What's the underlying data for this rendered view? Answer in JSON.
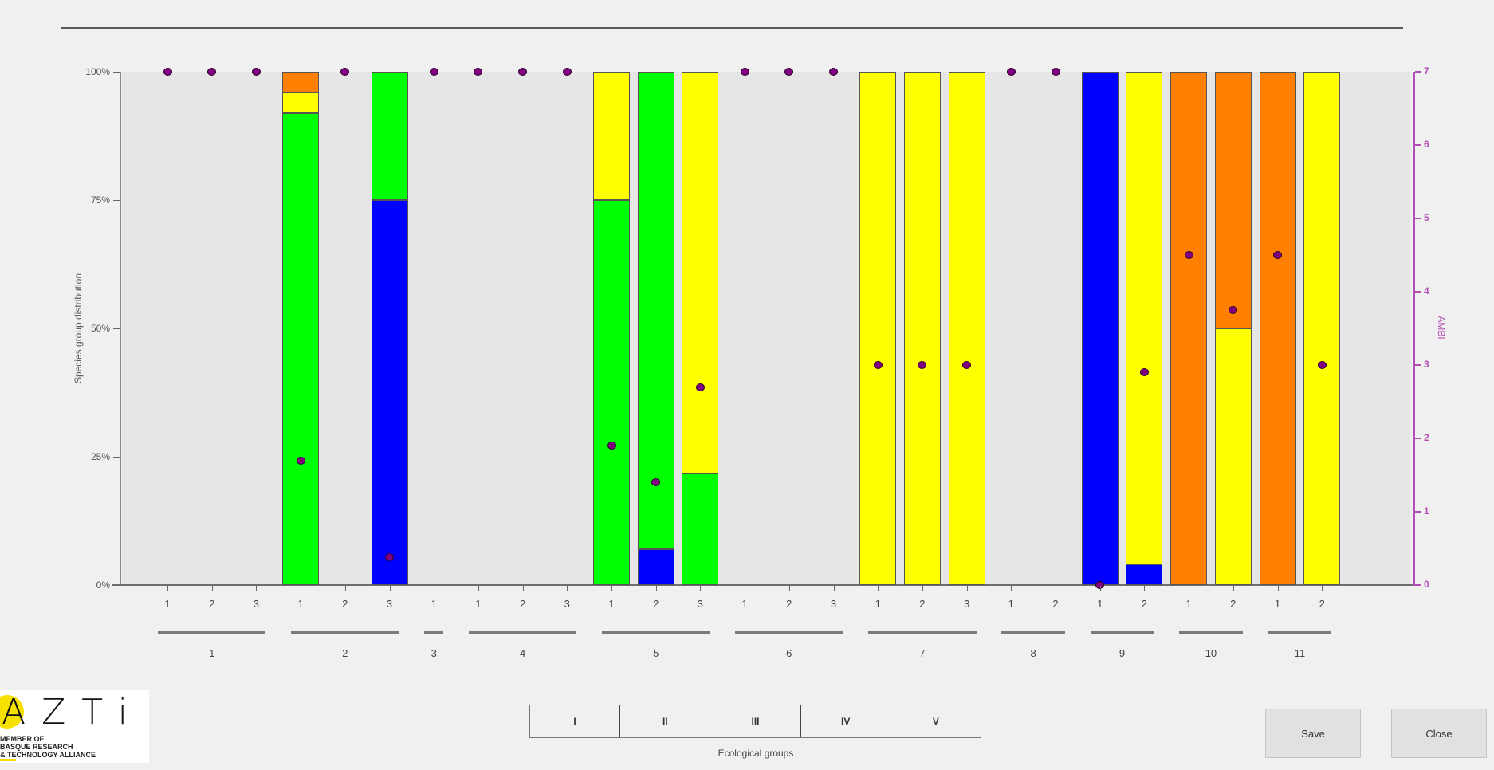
{
  "chart_data": {
    "type": "bar",
    "stacked": true,
    "title": "",
    "ylabel": "Species group distribution",
    "y2label": "AMBI",
    "ylim": [
      0,
      100
    ],
    "y2lim": [
      0,
      7
    ],
    "yticks": [
      "0%",
      "25%",
      "50%",
      "75%",
      "100%"
    ],
    "y2ticks": [
      "0",
      "1",
      "2",
      "3",
      "4",
      "5",
      "6",
      "7"
    ],
    "xlabel_outer": [
      "1",
      "2",
      "3",
      "4",
      "5",
      "6",
      "7",
      "8",
      "9",
      "10",
      "11"
    ],
    "legend_title": "Ecological groups",
    "legend": [
      {
        "label": "I",
        "color": "#0000ff"
      },
      {
        "label": "II",
        "color": "#00ff00"
      },
      {
        "label": "III",
        "color": "#ffff00"
      },
      {
        "label": "IV",
        "color": "#ff8000"
      },
      {
        "label": "V",
        "color": "#ff0000"
      }
    ],
    "groups": [
      {
        "label": "1",
        "samples": [
          "1",
          "2",
          "3"
        ]
      },
      {
        "label": "2",
        "samples": [
          "1",
          "2",
          "3"
        ]
      },
      {
        "label": "3",
        "samples": [
          "1"
        ]
      },
      {
        "label": "4",
        "samples": [
          "1",
          "2",
          "3"
        ]
      },
      {
        "label": "5",
        "samples": [
          "1",
          "2",
          "3"
        ]
      },
      {
        "label": "6",
        "samples": [
          "1",
          "2",
          "3"
        ]
      },
      {
        "label": "7",
        "samples": [
          "1",
          "2",
          "3"
        ]
      },
      {
        "label": "8",
        "samples": [
          "1",
          "2"
        ]
      },
      {
        "label": "9",
        "samples": [
          "1",
          "2"
        ]
      },
      {
        "label": "10",
        "samples": [
          "1",
          "2"
        ]
      },
      {
        "label": "11",
        "samples": [
          "1",
          "2"
        ]
      }
    ],
    "categories": [
      "1-1",
      "1-2",
      "1-3",
      "2-1",
      "2-2",
      "2-3",
      "3-1",
      "4-1",
      "4-2",
      "4-3",
      "5-1",
      "5-2",
      "5-3",
      "6-1",
      "6-2",
      "6-3",
      "7-1",
      "7-2",
      "7-3",
      "8-1",
      "8-2",
      "9-1",
      "9-2",
      "10-1",
      "10-2",
      "11-1",
      "11-2"
    ],
    "series": [
      {
        "name": "I",
        "values": [
          0,
          0,
          0,
          0,
          0,
          75,
          0,
          0,
          0,
          0,
          0,
          7,
          0,
          0,
          0,
          0,
          0,
          0,
          0,
          0,
          0,
          100,
          4,
          0,
          0,
          0,
          0
        ]
      },
      {
        "name": "II",
        "values": [
          0,
          0,
          0,
          92,
          0,
          25,
          0,
          0,
          0,
          0,
          75,
          93,
          21.7,
          0,
          0,
          0,
          0,
          0,
          0,
          0,
          0,
          0,
          0,
          0,
          0,
          0,
          0
        ]
      },
      {
        "name": "III",
        "values": [
          0,
          0,
          0,
          4,
          0,
          0,
          0,
          0,
          0,
          0,
          25,
          0,
          78.3,
          0,
          0,
          0,
          100,
          100,
          100,
          0,
          0,
          0,
          96,
          0,
          50,
          0,
          100
        ]
      },
      {
        "name": "IV",
        "values": [
          0,
          0,
          0,
          4,
          0,
          0,
          0,
          0,
          0,
          0,
          0,
          0,
          0,
          0,
          0,
          0,
          0,
          0,
          0,
          0,
          0,
          0,
          0,
          100,
          50,
          100,
          0
        ]
      },
      {
        "name": "V",
        "values": [
          0,
          0,
          0,
          0,
          0,
          0,
          0,
          0,
          0,
          0,
          0,
          0,
          0,
          0,
          0,
          0,
          0,
          0,
          0,
          0,
          0,
          0,
          0,
          0,
          0,
          0,
          0
        ]
      }
    ],
    "ambi": [
      7,
      7,
      7,
      1.7,
      7,
      0.38,
      7,
      7,
      7,
      7,
      1.9,
      1.4,
      2.7,
      7,
      7,
      7,
      3,
      3,
      3,
      7,
      7,
      0,
      2.9,
      4.5,
      3.75,
      4.5,
      3
    ]
  },
  "buttons": {
    "save": "Save",
    "close": "Close"
  },
  "logo": {
    "big": "AZTi",
    "line1": "MEMBER OF",
    "line2": "BASQUE RESEARCH",
    "line3": "& TECHNOLOGY ALLIANCE"
  }
}
